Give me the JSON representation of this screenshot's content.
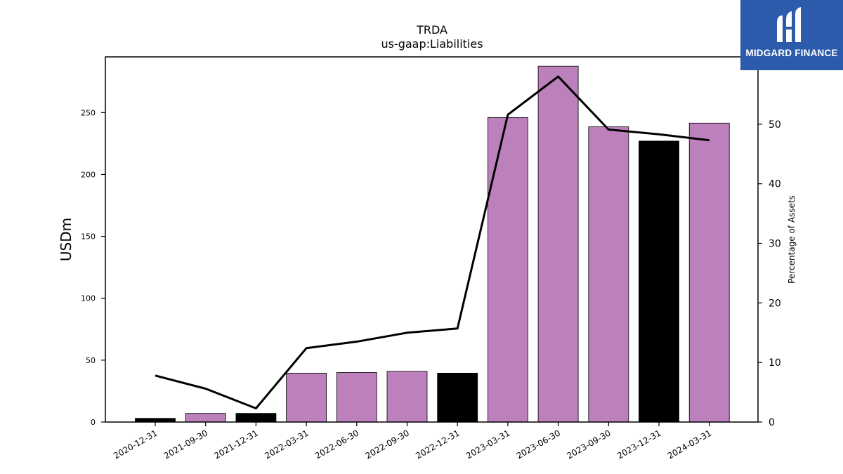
{
  "brand": {
    "name": "MIDGARD FINANCE",
    "logo_icon": "mf-logo-icon",
    "background_color": "#2d5bab"
  },
  "chart_data": {
    "type": "bar",
    "title": "TRDA",
    "subtitle": "us-gaap:Liabilities",
    "ylabel": "USDm",
    "y2label": "Percentage of Assets",
    "categories": [
      "2020-12-31",
      "2021-09-30",
      "2021-12-31",
      "2022-03-31",
      "2022-06-30",
      "2022-09-30",
      "2022-12-31",
      "2023-03-31",
      "2023-06-30",
      "2023-09-30",
      "2023-12-31",
      "2024-03-31"
    ],
    "ylim": [
      0,
      295
    ],
    "y2lim": [
      0,
      61.3
    ],
    "yticks": [
      0,
      50,
      100,
      150,
      200,
      250
    ],
    "y2ticks": [
      0,
      10,
      20,
      30,
      40,
      50
    ],
    "series": [
      {
        "type": "bar",
        "values": [
          3,
          7,
          7,
          39.5,
          40,
          41,
          39.5,
          246,
          287.5,
          238.5,
          227,
          241.5
        ],
        "bar_colors": [
          "#000000",
          "#bc80bd",
          "#000000",
          "#bc80bd",
          "#bc80bd",
          "#bc80bd",
          "#000000",
          "#bc80bd",
          "#bc80bd",
          "#bc80bd",
          "#000000",
          "#bc80bd"
        ]
      },
      {
        "type": "line",
        "axis": "right",
        "color": "#000000",
        "values": [
          7.8,
          5.6,
          2.3,
          12.4,
          13.5,
          15.0,
          15.7,
          51.6,
          58.0,
          49.1,
          48.3,
          47.3
        ]
      }
    ],
    "grid": false,
    "legend": "none"
  }
}
